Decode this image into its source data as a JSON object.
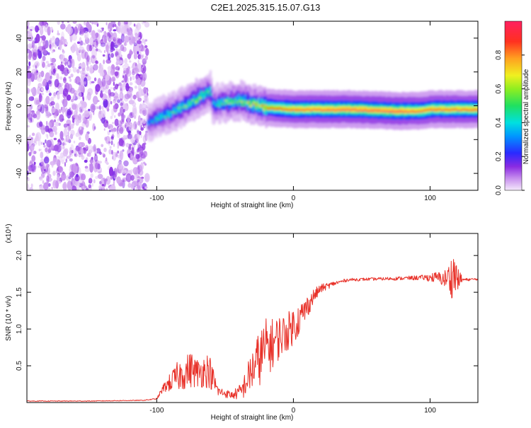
{
  "title": "C2E1.2025.315.15.07.G13",
  "chart_data": [
    {
      "type": "heatmap",
      "name": "spectrogram",
      "xlabel": "Height of straight line (km)",
      "ylabel": "Frequency (Hz)",
      "xlim": [
        -195,
        135
      ],
      "ylim": [
        -50,
        50
      ],
      "xticks": [
        -100,
        0,
        100
      ],
      "yticks": [
        -40,
        -20,
        0,
        20,
        40
      ],
      "noise_region": {
        "x_from": -195,
        "x_to": -107,
        "f_from": -50,
        "f_to": 50
      },
      "signal_track": [
        {
          "x": -107,
          "f": -10,
          "a": 0.35
        },
        {
          "x": -100,
          "f": -7,
          "a": 0.45
        },
        {
          "x": -90,
          "f": -4,
          "a": 0.5
        },
        {
          "x": -80,
          "f": 0,
          "a": 0.55
        },
        {
          "x": -70,
          "f": 5,
          "a": 0.6
        },
        {
          "x": -61,
          "f": 9,
          "a": 0.5
        },
        {
          "x": -60,
          "f": 1,
          "a": 0.4
        },
        {
          "x": -50,
          "f": 2,
          "a": 0.55
        },
        {
          "x": -40,
          "f": 3,
          "a": 0.6
        },
        {
          "x": -30,
          "f": 1,
          "a": 0.7
        },
        {
          "x": -20,
          "f": -1,
          "a": 0.85
        },
        {
          "x": 0,
          "f": -2,
          "a": 0.95
        },
        {
          "x": 40,
          "f": -2,
          "a": 1.0
        },
        {
          "x": 75,
          "f": -3,
          "a": 1.0
        },
        {
          "x": 92,
          "f": -3,
          "a": 0.95
        },
        {
          "x": 100,
          "f": -2,
          "a": 0.95
        },
        {
          "x": 135,
          "f": -2,
          "a": 0.95
        }
      ],
      "colorbar": {
        "label": "Normalized spectral amplitude",
        "range": [
          0,
          1
        ],
        "ticks": [
          "0.0",
          "0.2",
          "0.4",
          "0.6",
          "0.8"
        ]
      }
    },
    {
      "type": "line",
      "name": "snr",
      "xlabel": "Height of straight line (km)",
      "ylabel": "SNR (10 * v/v)",
      "multiplier": "(x10⁴)",
      "xlim": [
        -195,
        135
      ],
      "ylim": [
        0,
        2.3
      ],
      "xticks": [
        -100,
        0,
        100
      ],
      "yticks": [
        "0.5",
        "1.0",
        "1.5",
        "2.0"
      ],
      "color": "#e8322a",
      "series": [
        {
          "name": "SNR",
          "x": [
            -195,
            -150,
            -110,
            -100,
            -95,
            -85,
            -75,
            -70,
            -62,
            -55,
            -45,
            -38,
            -30,
            -25,
            -20,
            -15,
            -10,
            -5,
            0,
            5,
            10,
            15,
            20,
            30,
            40,
            60,
            80,
            95,
            105,
            110,
            115,
            118,
            120,
            125,
            135
          ],
          "y": [
            0.02,
            0.02,
            0.03,
            0.05,
            0.2,
            0.35,
            0.45,
            0.4,
            0.45,
            0.15,
            0.1,
            0.15,
            0.45,
            0.6,
            0.75,
            0.8,
            0.9,
            0.95,
            1.05,
            1.15,
            1.3,
            1.45,
            1.55,
            1.62,
            1.67,
            1.68,
            1.69,
            1.7,
            1.7,
            1.68,
            1.7,
            1.75,
            1.68,
            1.67,
            1.68
          ],
          "noise": [
            0.005,
            0.005,
            0.005,
            0.01,
            0.06,
            0.2,
            0.25,
            0.2,
            0.25,
            0.07,
            0.05,
            0.12,
            0.3,
            0.38,
            0.4,
            0.35,
            0.3,
            0.26,
            0.26,
            0.22,
            0.16,
            0.1,
            0.06,
            0.03,
            0.02,
            0.02,
            0.025,
            0.035,
            0.08,
            0.1,
            0.25,
            0.4,
            0.15,
            0.02,
            0.015
          ]
        }
      ]
    }
  ]
}
